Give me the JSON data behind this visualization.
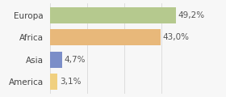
{
  "categories": [
    "Europa",
    "Africa",
    "Asia",
    "America"
  ],
  "values": [
    49.2,
    43.0,
    4.7,
    3.1
  ],
  "labels": [
    "49,2%",
    "43,0%",
    "4,7%",
    "3,1%"
  ],
  "bar_colors": [
    "#b5c98e",
    "#e8b87a",
    "#7b8ec8",
    "#f0d080"
  ],
  "background_color": "#f7f7f7",
  "xlim": [
    0,
    58
  ],
  "bar_height": 0.72,
  "label_fontsize": 7.5,
  "tick_fontsize": 7.5,
  "grid_color": "#d8d8d8",
  "grid_positions": [
    0,
    14.5,
    29.0,
    43.5,
    58.0
  ]
}
